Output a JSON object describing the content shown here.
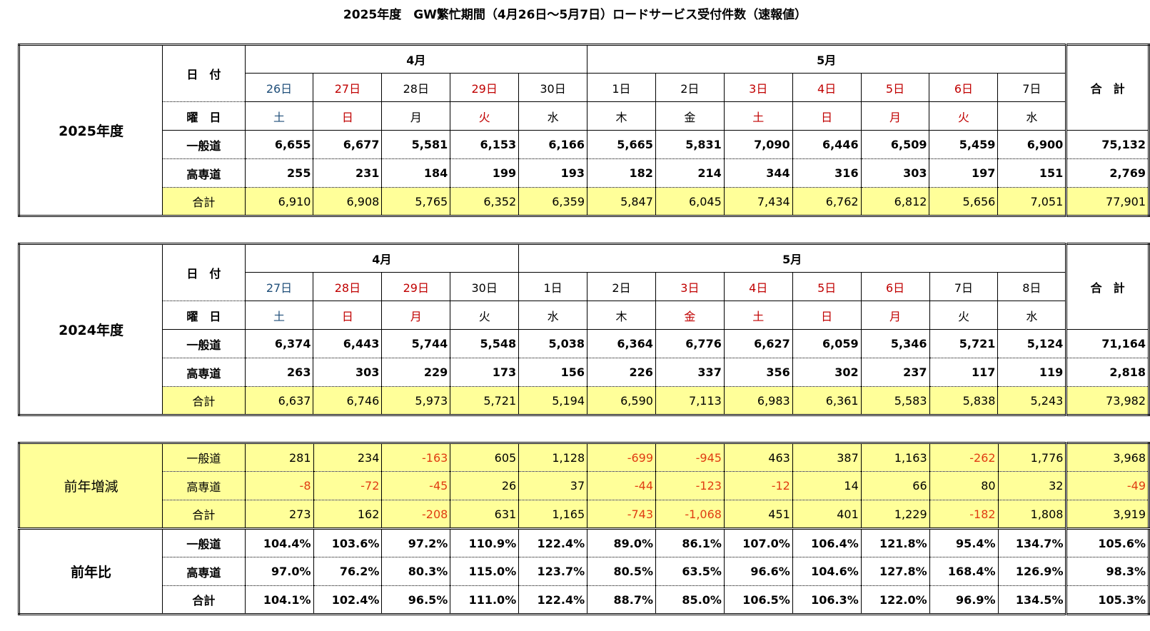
{
  "title": "2025年度　GW繁忙期間（4月26日～5月7日）ロードサービス受付件数（速報値）",
  "labels": {
    "date": "日　付",
    "dow": "曜　日",
    "total_head": "合　計",
    "ippan": "一般道",
    "kosen": "高専道",
    "goukei": "合計"
  },
  "y2025": {
    "year_label": "2025年度",
    "apr_label": "4月",
    "may_label": "5月",
    "dates": [
      "26日",
      "27日",
      "28日",
      "29日",
      "30日",
      "1日",
      "2日",
      "3日",
      "4日",
      "5日",
      "6日",
      "7日"
    ],
    "date_colors": [
      "blue",
      "red",
      "black",
      "red",
      "black",
      "black",
      "black",
      "red",
      "red",
      "red",
      "red",
      "black"
    ],
    "dows": [
      "土",
      "日",
      "月",
      "火",
      "水",
      "木",
      "金",
      "土",
      "日",
      "月",
      "火",
      "水"
    ],
    "dow_colors": [
      "blue",
      "red",
      "black",
      "red",
      "black",
      "black",
      "black",
      "red",
      "red",
      "red",
      "red",
      "black"
    ],
    "ippan": [
      "6,655",
      "6,677",
      "5,581",
      "6,153",
      "6,166",
      "5,665",
      "5,831",
      "7,090",
      "6,446",
      "6,509",
      "5,459",
      "6,900"
    ],
    "ippan_total": "75,132",
    "kosen": [
      "255",
      "231",
      "184",
      "199",
      "193",
      "182",
      "214",
      "344",
      "316",
      "303",
      "197",
      "151"
    ],
    "kosen_total": "2,769",
    "goukei": [
      "6,910",
      "6,908",
      "5,765",
      "6,352",
      "6,359",
      "5,847",
      "6,045",
      "7,434",
      "6,762",
      "6,812",
      "5,656",
      "7,051"
    ],
    "goukei_total": "77,901"
  },
  "y2024": {
    "year_label": "2024年度",
    "apr_label": "4月",
    "may_label": "5月",
    "dates": [
      "27日",
      "28日",
      "29日",
      "30日",
      "1日",
      "2日",
      "3日",
      "4日",
      "5日",
      "6日",
      "7日",
      "8日"
    ],
    "date_colors": [
      "blue",
      "red",
      "red",
      "black",
      "black",
      "black",
      "red",
      "red",
      "red",
      "red",
      "black",
      "black"
    ],
    "dows": [
      "土",
      "日",
      "月",
      "火",
      "水",
      "木",
      "金",
      "土",
      "日",
      "月",
      "火",
      "水"
    ],
    "dow_colors": [
      "blue",
      "red",
      "red",
      "black",
      "black",
      "black",
      "red",
      "red",
      "red",
      "red",
      "black",
      "black"
    ],
    "ippan": [
      "6,374",
      "6,443",
      "5,744",
      "5,548",
      "5,038",
      "6,364",
      "6,776",
      "6,627",
      "6,059",
      "5,346",
      "5,721",
      "5,124"
    ],
    "ippan_total": "71,164",
    "kosen": [
      "263",
      "303",
      "229",
      "173",
      "156",
      "226",
      "337",
      "356",
      "302",
      "237",
      "117",
      "119"
    ],
    "kosen_total": "2,818",
    "goukei": [
      "6,637",
      "6,746",
      "5,973",
      "5,721",
      "5,194",
      "6,590",
      "7,113",
      "6,983",
      "6,361",
      "5,583",
      "5,838",
      "5,243"
    ],
    "goukei_total": "73,982"
  },
  "diff": {
    "label": "前年増減",
    "ippan": [
      "281",
      "234",
      "-163",
      "605",
      "1,128",
      "-699",
      "-945",
      "463",
      "387",
      "1,163",
      "-262",
      "1,776"
    ],
    "ippan_total": "3,968",
    "kosen": [
      "-8",
      "-72",
      "-45",
      "26",
      "37",
      "-44",
      "-123",
      "-12",
      "14",
      "66",
      "80",
      "32"
    ],
    "kosen_total": "-49",
    "goukei": [
      "273",
      "162",
      "-208",
      "631",
      "1,165",
      "-743",
      "-1,068",
      "451",
      "401",
      "1,229",
      "-182",
      "1,808"
    ],
    "goukei_total": "3,919"
  },
  "ratio": {
    "label": "前年比",
    "ippan": [
      "104.4%",
      "103.6%",
      "97.2%",
      "110.9%",
      "122.4%",
      "89.0%",
      "86.1%",
      "107.0%",
      "106.4%",
      "121.8%",
      "95.4%",
      "134.7%"
    ],
    "ippan_total": "105.6%",
    "kosen": [
      "97.0%",
      "76.2%",
      "80.3%",
      "115.0%",
      "123.7%",
      "80.5%",
      "63.5%",
      "96.6%",
      "104.6%",
      "127.8%",
      "168.4%",
      "126.9%"
    ],
    "kosen_total": "98.3%",
    "goukei": [
      "104.1%",
      "102.4%",
      "96.5%",
      "111.0%",
      "122.4%",
      "88.7%",
      "85.0%",
      "106.5%",
      "106.3%",
      "122.0%",
      "96.9%",
      "134.5%"
    ],
    "goukei_total": "105.3%"
  }
}
